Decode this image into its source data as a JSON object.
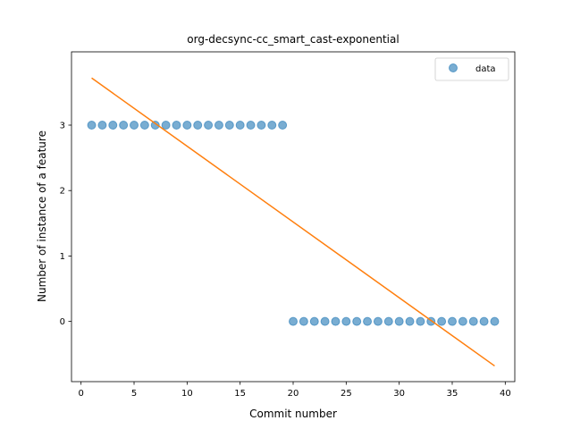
{
  "chart_data": {
    "type": "scatter",
    "title": "org-decsync-cc_smart_cast-exponential",
    "xlabel": "Commit number",
    "ylabel": "Number of instance of a feature",
    "xlim": [
      -0.9,
      40.9
    ],
    "ylim": [
      -0.92,
      4.12
    ],
    "xticks": [
      0,
      5,
      10,
      15,
      20,
      25,
      30,
      35,
      40
    ],
    "yticks": [
      0,
      1,
      2,
      3
    ],
    "grid": false,
    "legend": {
      "placement": "top-right",
      "entries": [
        "data"
      ]
    },
    "series": [
      {
        "name": "data",
        "kind": "points",
        "color": "#1f77b4",
        "x": [
          1,
          2,
          3,
          4,
          5,
          6,
          7,
          8,
          9,
          10,
          11,
          12,
          13,
          14,
          15,
          16,
          17,
          18,
          19,
          20,
          21,
          22,
          23,
          24,
          25,
          26,
          27,
          28,
          29,
          30,
          31,
          32,
          33,
          34,
          35,
          36,
          37,
          38,
          39
        ],
        "y": [
          3,
          3,
          3,
          3,
          3,
          3,
          3,
          3,
          3,
          3,
          3,
          3,
          3,
          3,
          3,
          3,
          3,
          3,
          3,
          0,
          0,
          0,
          0,
          0,
          0,
          0,
          0,
          0,
          0,
          0,
          0,
          0,
          0,
          0,
          0,
          0,
          0,
          0,
          0
        ]
      },
      {
        "kind": "line",
        "color": "#ff7f0e",
        "x": [
          1,
          39
        ],
        "y": [
          3.72,
          -0.68
        ]
      }
    ]
  }
}
